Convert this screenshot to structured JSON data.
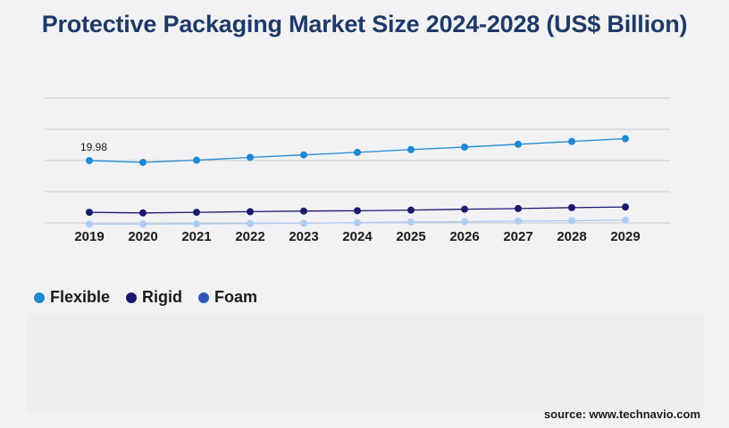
{
  "title": "Protective Packaging Market Size 2024-2028 (US$ Billion)",
  "source": "source: www.technavio.com",
  "chart_data": {
    "type": "line",
    "title": "Protective Packaging Market Size 2024-2028 (US$ Billion)",
    "x": [
      "2019",
      "2020",
      "2021",
      "2022",
      "2023",
      "2024",
      "2025",
      "2026",
      "2027",
      "2028",
      "2029"
    ],
    "ylim": [
      0,
      40
    ],
    "grid": true,
    "legend_position": "bottom-left",
    "series": [
      {
        "name": "Flexible",
        "color": "#1e88d0",
        "values": [
          19.98,
          19.4,
          20.1,
          21.0,
          21.8,
          22.6,
          23.5,
          24.3,
          25.2,
          26.1,
          27.0
        ],
        "labels": [
          "19.98",
          "",
          "",
          "",
          "",
          "",
          "",
          "",
          "",
          "",
          ""
        ]
      },
      {
        "name": "Rigid",
        "color": "#1a1a6e",
        "values": [
          3.4,
          3.2,
          3.4,
          3.6,
          3.8,
          3.9,
          4.1,
          4.4,
          4.6,
          4.9,
          5.1
        ],
        "labels": []
      },
      {
        "name": "Foam",
        "color": "#aecdf5",
        "values": [
          -0.4,
          -0.4,
          -0.3,
          -0.2,
          -0.1,
          0.1,
          0.3,
          0.4,
          0.6,
          0.7,
          0.9
        ],
        "labels": []
      }
    ]
  },
  "legend": [
    {
      "name": "Flexible",
      "color": "#1e88d0"
    },
    {
      "name": "Rigid",
      "color": "#1a1a6e"
    },
    {
      "name": "Foam",
      "color": "#2f56b8"
    }
  ]
}
